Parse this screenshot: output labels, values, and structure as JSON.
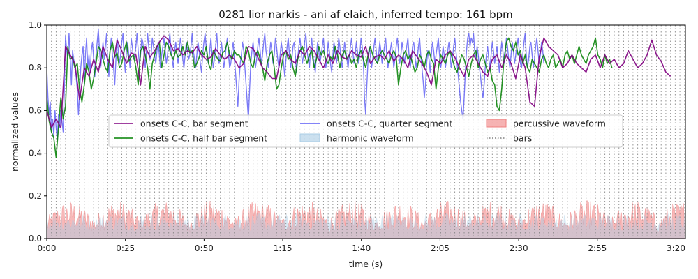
{
  "chart_data": {
    "type": "line",
    "title": "0281 lior narkis - ani af elaich, inferred tempo: 161 bpm",
    "xlabel": "time (s)",
    "ylabel": "normalized values",
    "xlim": [
      0,
      203
    ],
    "ylim": [
      0,
      1.0
    ],
    "x_ticks": [
      0,
      25,
      50,
      75,
      100,
      125,
      150,
      175,
      200
    ],
    "x_tick_labels": [
      "0:00",
      "0:25",
      "0:50",
      "1:15",
      "1:40",
      "2:05",
      "2:30",
      "2:55",
      "3:20"
    ],
    "y_ticks": [
      0.0,
      0.2,
      0.4,
      0.6,
      0.8,
      1.0
    ],
    "y_tick_labels": [
      "0.0",
      "0.2",
      "0.4",
      "0.6",
      "0.8",
      "1.0"
    ],
    "grid": false,
    "legend_placement": "center",
    "bar_interval_seconds": 1.4907,
    "colors": {
      "bar_segment": "#800080",
      "half_bar_segment": "#008000",
      "quarter_segment": "#5a5af5",
      "harmonic": "#a8cce4",
      "percussive": "#f08080",
      "bars": "#808080"
    },
    "series": [
      {
        "name": "onsets C-C, bar segment",
        "step": 1.4907,
        "values": [
          0.6,
          0.52,
          0.56,
          0.52,
          0.9,
          0.86,
          0.82,
          0.65,
          0.8,
          0.76,
          0.84,
          0.78,
          0.9,
          0.84,
          0.8,
          0.93,
          0.88,
          0.82,
          0.87,
          0.86,
          0.72,
          0.9,
          0.85,
          0.88,
          0.92,
          0.95,
          0.93,
          0.88,
          0.89,
          0.86,
          0.88,
          0.87,
          0.9,
          0.86,
          0.84,
          0.85,
          0.89,
          0.86,
          0.84,
          0.86,
          0.84,
          0.8,
          0.82,
          0.9,
          0.89,
          0.85,
          0.8,
          0.78,
          0.75,
          0.75,
          0.86,
          0.88,
          0.84,
          0.82,
          0.88,
          0.86,
          0.9,
          0.88,
          0.84,
          0.8,
          0.86,
          0.82,
          0.88,
          0.85,
          0.84,
          0.88,
          0.86,
          0.85,
          0.9,
          0.82,
          0.85,
          0.86,
          0.84,
          0.88,
          0.83,
          0.86,
          0.84,
          0.8,
          0.88,
          0.85,
          0.82,
          0.78,
          0.72,
          0.84,
          0.82,
          0.86,
          0.88,
          0.85,
          0.8,
          0.76,
          0.84,
          0.86,
          0.82,
          0.78,
          0.76,
          0.84,
          0.86,
          0.8,
          0.86,
          0.82,
          0.75,
          0.86,
          0.8,
          0.64,
          0.62,
          0.85,
          0.94,
          0.9,
          0.88,
          0.86,
          0.8,
          0.82,
          0.86,
          0.82,
          0.8,
          0.78,
          0.84,
          0.86,
          0.8,
          0.86,
          0.82,
          0.84,
          0.8,
          0.82,
          0.88,
          0.84,
          0.8,
          0.82,
          0.86,
          0.93,
          0.86,
          0.83,
          0.78,
          0.76
        ]
      },
      {
        "name": "onsets C-C, half bar segment",
        "step": 0.74535,
        "values": [
          0.66,
          0.55,
          0.5,
          0.47,
          0.38,
          0.52,
          0.66,
          0.56,
          0.62,
          0.9,
          0.84,
          0.85,
          0.8,
          0.82,
          0.7,
          0.64,
          0.72,
          0.82,
          0.78,
          0.7,
          0.75,
          0.82,
          0.9,
          0.88,
          0.84,
          0.8,
          0.78,
          0.88,
          0.92,
          0.85,
          0.87,
          0.8,
          0.82,
          0.88,
          0.92,
          0.83,
          0.85,
          0.86,
          0.8,
          0.72,
          0.88,
          0.9,
          0.86,
          0.8,
          0.7,
          0.82,
          0.86,
          0.9,
          0.92,
          0.8,
          0.86,
          0.92,
          0.9,
          0.86,
          0.84,
          0.88,
          0.85,
          0.86,
          0.9,
          0.86,
          0.92,
          0.87,
          0.88,
          0.8,
          0.82,
          0.85,
          0.88,
          0.86,
          0.9,
          0.82,
          0.79,
          0.88,
          0.86,
          0.84,
          0.83,
          0.87,
          0.88,
          0.92,
          0.86,
          0.84,
          0.88,
          0.86,
          0.86,
          0.84,
          0.82,
          0.9,
          0.88,
          0.82,
          0.8,
          0.86,
          0.88,
          0.84,
          0.8,
          0.74,
          0.82,
          0.86,
          0.88,
          0.8,
          0.7,
          0.72,
          0.8,
          0.86,
          0.88,
          0.84,
          0.86,
          0.8,
          0.76,
          0.84,
          0.88,
          0.9,
          0.86,
          0.82,
          0.86,
          0.88,
          0.8,
          0.84,
          0.9,
          0.86,
          0.88,
          0.84,
          0.82,
          0.85,
          0.84,
          0.9,
          0.86,
          0.8,
          0.86,
          0.88,
          0.84,
          0.86,
          0.82,
          0.84,
          0.8,
          0.86,
          0.88,
          0.84,
          0.8,
          0.86,
          0.9,
          0.86,
          0.84,
          0.82,
          0.86,
          0.88,
          0.86,
          0.84,
          0.82,
          0.86,
          0.88,
          0.85,
          0.72,
          0.8,
          0.86,
          0.88,
          0.84,
          0.86,
          0.82,
          0.78,
          0.8,
          0.86,
          0.84,
          0.8,
          0.86,
          0.88,
          0.84,
          0.82,
          0.7,
          0.8,
          0.86,
          0.84,
          0.82,
          0.86,
          0.88,
          0.84,
          0.8,
          0.78,
          0.82,
          0.86,
          0.84,
          0.8,
          0.76,
          0.82,
          0.86,
          0.88,
          0.8,
          0.84,
          0.86,
          0.82,
          0.78,
          0.8,
          0.74,
          0.72,
          0.62,
          0.6,
          0.7,
          0.84,
          0.92,
          0.94,
          0.9,
          0.88,
          0.92,
          0.86,
          0.88,
          0.82,
          0.86,
          0.8,
          0.78,
          0.84,
          0.82,
          0.8,
          0.78,
          0.84,
          0.86,
          0.82,
          0.8,
          0.84,
          0.86,
          0.8,
          0.82,
          0.84,
          0.8,
          0.86,
          0.88,
          0.84,
          0.86,
          0.82,
          0.86,
          0.9,
          0.86,
          0.84,
          0.82,
          0.86,
          0.88,
          0.9,
          0.94,
          0.86,
          0.84,
          0.8,
          0.86,
          0.82,
          0.84,
          0.8
        ]
      },
      {
        "name": "onsets C-C, quarter segment",
        "step": 0.37267,
        "values": [
          0.8,
          0.66,
          0.58,
          0.64,
          0.5,
          0.56,
          0.48,
          0.6,
          0.52,
          0.46,
          0.58,
          0.52,
          0.6,
          0.55,
          0.5,
          0.7,
          0.95,
          0.88,
          0.84,
          0.96,
          0.85,
          0.72,
          0.88,
          0.84,
          0.8,
          0.76,
          0.7,
          0.58,
          0.68,
          0.8,
          0.86,
          0.9,
          0.72,
          0.86,
          0.94,
          0.8,
          0.86,
          0.78,
          0.88,
          0.92,
          0.84,
          0.76,
          0.86,
          0.92,
          0.98,
          0.88,
          0.8,
          0.86,
          0.92,
          0.84,
          0.9,
          0.96,
          0.82,
          0.76,
          0.88,
          0.94,
          0.86,
          0.8,
          0.72,
          0.84,
          0.94,
          0.88,
          0.82,
          0.86,
          0.92,
          0.96,
          0.84,
          0.78,
          0.88,
          0.92,
          0.86,
          0.8,
          0.94,
          0.9,
          0.84,
          0.86,
          0.9,
          0.96,
          0.88,
          0.82,
          0.86,
          0.94,
          0.92,
          0.86,
          0.8,
          0.88,
          0.96,
          0.9,
          0.84,
          0.86,
          0.94,
          0.9,
          0.86,
          0.82,
          0.88,
          0.92,
          0.86,
          0.8,
          0.86,
          0.9,
          0.94,
          0.88,
          0.82,
          0.86,
          0.92,
          0.96,
          0.88,
          0.84,
          0.8,
          0.88,
          0.92,
          0.86,
          0.82,
          0.88,
          0.94,
          0.9,
          0.84,
          0.8,
          0.86,
          0.92,
          0.88,
          0.84,
          0.86,
          0.9,
          0.96,
          0.88,
          0.84,
          0.8,
          0.86,
          0.92,
          0.88,
          0.82,
          0.78,
          0.86,
          0.92,
          0.96,
          0.9,
          0.84,
          0.82,
          0.88,
          0.94,
          0.86,
          0.8,
          0.84,
          0.9,
          0.96,
          0.88,
          0.82,
          0.86,
          0.92,
          0.86,
          0.8,
          0.84,
          0.9,
          0.94,
          0.86,
          0.8,
          0.82,
          0.88,
          0.92,
          0.84,
          0.78,
          0.7,
          0.62,
          0.74,
          0.82,
          0.86,
          0.92,
          0.88,
          0.8,
          0.72,
          0.64,
          0.56,
          0.7,
          0.82,
          0.88,
          0.92,
          0.86,
          0.8,
          0.84,
          0.9,
          0.94,
          0.88,
          0.82,
          0.86,
          0.92,
          0.96,
          0.88,
          0.84,
          0.8,
          0.86,
          0.92,
          0.88,
          0.82,
          0.86,
          0.94,
          0.9,
          0.84,
          0.8,
          0.86,
          0.92,
          0.88,
          0.82,
          0.76,
          0.84,
          0.9,
          0.94,
          0.86,
          0.8,
          0.84,
          0.9,
          0.92,
          0.86,
          0.78,
          0.84,
          0.9,
          0.94,
          0.88,
          0.82,
          0.86,
          0.92,
          0.96,
          0.88,
          0.84,
          0.8,
          0.88,
          0.94,
          0.86,
          0.82,
          0.78,
          0.86,
          0.92,
          0.88,
          0.82,
          0.86,
          0.9,
          0.94,
          0.86,
          0.8,
          0.84,
          0.92,
          0.88,
          0.82,
          0.78,
          0.86,
          0.92,
          0.88,
          0.82,
          0.86,
          0.94,
          0.9,
          0.84,
          0.8,
          0.86,
          0.92,
          0.88,
          0.84,
          0.8,
          0.86,
          0.9,
          0.94,
          0.88,
          0.82,
          0.86,
          0.92,
          0.88,
          0.82,
          0.86,
          0.94,
          0.9,
          0.84,
          0.66,
          0.58,
          0.72,
          0.84,
          0.9,
          0.86,
          0.8,
          0.84,
          0.9,
          0.94,
          0.88,
          0.82,
          0.86,
          0.92,
          0.88,
          0.82,
          0.86,
          0.9,
          0.94,
          0.86,
          0.8,
          0.84,
          0.88,
          0.92,
          0.86,
          0.8,
          0.84,
          0.9,
          0.94,
          0.88,
          0.82,
          0.86,
          0.92,
          0.88,
          0.82,
          0.86,
          0.9,
          0.94,
          0.86,
          0.8,
          0.84,
          0.9,
          0.92,
          0.86,
          0.8,
          0.84,
          0.9,
          0.94,
          0.86,
          0.8,
          0.74,
          0.66,
          0.72,
          0.82,
          0.88,
          0.84,
          0.78,
          0.86,
          0.92,
          0.88,
          0.82,
          0.86,
          0.9,
          0.94,
          0.86,
          0.8,
          0.84,
          0.9,
          0.86,
          0.8,
          0.84,
          0.88,
          0.92,
          0.86,
          0.8,
          0.84,
          0.9,
          0.94,
          0.88,
          0.82,
          0.76,
          0.7,
          0.64,
          0.6,
          0.56,
          0.66,
          0.78,
          0.88,
          0.94,
          0.96,
          0.9,
          0.94,
          0.92,
          0.96,
          0.88,
          0.84,
          0.9,
          0.86,
          0.8,
          0.76,
          0.7,
          0.66,
          0.72,
          0.8,
          0.86,
          0.9,
          0.84,
          0.8,
          0.86,
          0.92,
          0.88,
          0.82,
          0.86,
          0.9,
          0.84,
          0.78,
          0.86,
          0.92,
          0.88,
          0.82,
          0.86,
          0.94,
          0.9,
          0.84,
          0.8,
          0.86,
          0.92,
          0.88,
          0.82,
          0.86,
          0.9,
          0.94,
          0.88,
          0.82,
          0.8,
          0.86,
          0.92,
          0.96,
          0.86,
          0.8,
          0.84,
          0.9,
          0.92,
          0.86,
          0.8,
          0.84,
          0.9,
          0.94,
          0.88,
          0.82,
          0.86,
          0.92,
          0.88,
          0.82
        ]
      },
      {
        "name": "harmonic waveform",
        "kind": "area",
        "approx_amplitude_range": [
          0.0,
          0.12
        ]
      },
      {
        "name": "percussive waveform",
        "kind": "area",
        "approx_amplitude_range": [
          0.0,
          0.18
        ]
      },
      {
        "name": "bars",
        "kind": "vertical-dotted-lines"
      }
    ]
  }
}
